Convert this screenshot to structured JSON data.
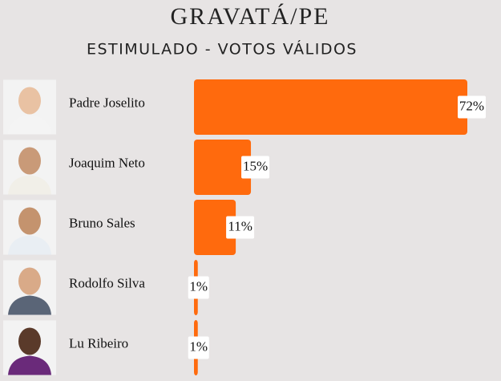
{
  "chart_data": {
    "type": "bar",
    "orientation": "horizontal",
    "title": "GRAVATÁ/PE",
    "subtitle": "ESTIMULADO - VOTOS VÁLIDOS",
    "categories": [
      "Padre Joselito",
      "Joaquim Neto",
      "Bruno Sales",
      "Rodolfo Silva",
      "Lu Ribeiro"
    ],
    "values": [
      72,
      15,
      11,
      1,
      1
    ],
    "value_labels": [
      "72%",
      "15%",
      "11%",
      "1%",
      "1%"
    ],
    "color": "#ff6a0d"
  }
}
